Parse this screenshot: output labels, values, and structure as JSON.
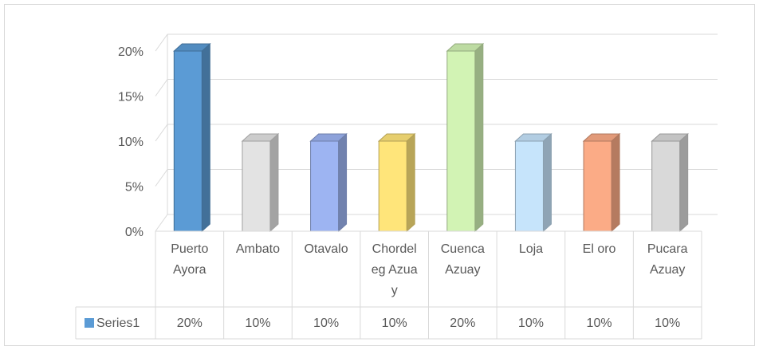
{
  "chart_data": {
    "type": "bar3d",
    "categories": [
      "Puerto Ayora",
      "Ambato",
      "Otavalo",
      "Chordeleg Azuay",
      "Cuenca Azuay",
      "Loja",
      "El oro",
      "Pucara Azuay"
    ],
    "series": [
      {
        "name": "Series1",
        "color": "#5b9bd5",
        "values": [
          20,
          10,
          10,
          10,
          20,
          10,
          10,
          10
        ],
        "value_labels": [
          "20%",
          "10%",
          "10%",
          "10%",
          "20%",
          "10%",
          "10%",
          "10%"
        ]
      }
    ],
    "colors": [
      "#5b9bd5",
      "#e3e3e3",
      "#9db4f2",
      "#ffe57a",
      "#d2f3b4",
      "#c6e4fb",
      "#fbab86",
      "#d9d9d9"
    ],
    "ylim": [
      0,
      20
    ],
    "yticks": [
      {
        "value": 0,
        "label": "0%"
      },
      {
        "value": 5,
        "label": "5%"
      },
      {
        "value": 10,
        "label": "10%"
      },
      {
        "value": 15,
        "label": "15%"
      },
      {
        "value": 20,
        "label": "20%"
      }
    ],
    "grid": true,
    "data_table": true
  }
}
